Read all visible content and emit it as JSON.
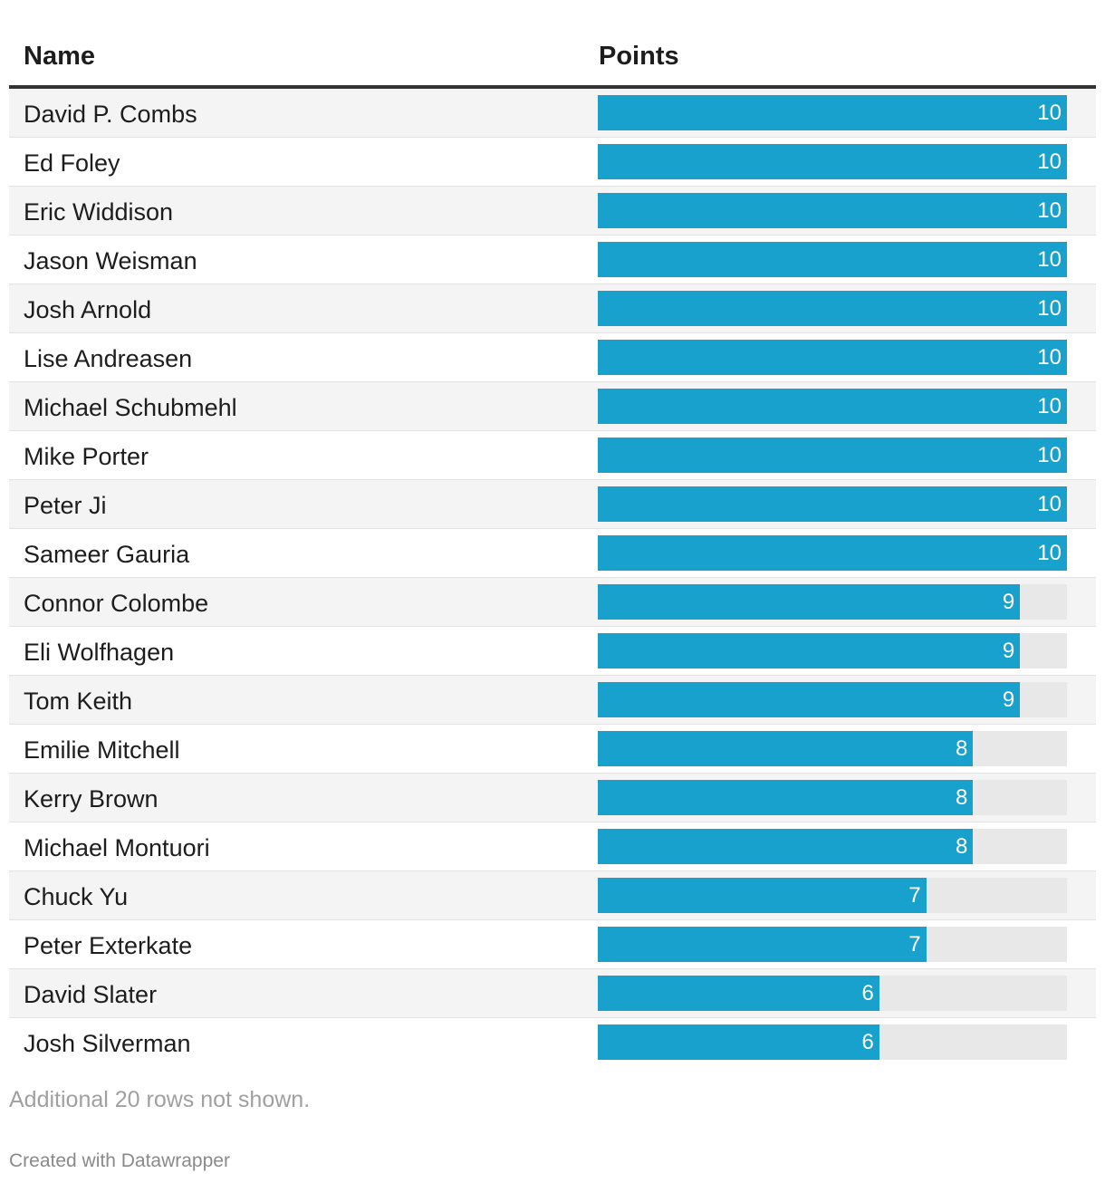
{
  "chart_data": {
    "type": "table",
    "columns": [
      "Name",
      "Points"
    ],
    "value_max": 10,
    "rows": [
      {
        "name": "David P. Combs",
        "points": 10
      },
      {
        "name": "Ed Foley",
        "points": 10
      },
      {
        "name": "Eric Widdison",
        "points": 10
      },
      {
        "name": "Jason Weisman",
        "points": 10
      },
      {
        "name": "Josh Arnold",
        "points": 10
      },
      {
        "name": "Lise Andreasen",
        "points": 10
      },
      {
        "name": "Michael Schubmehl",
        "points": 10
      },
      {
        "name": "Mike Porter",
        "points": 10
      },
      {
        "name": "Peter Ji",
        "points": 10
      },
      {
        "name": "Sameer Gauria",
        "points": 10
      },
      {
        "name": "Connor Colombe",
        "points": 9
      },
      {
        "name": "Eli Wolfhagen",
        "points": 9
      },
      {
        "name": "Tom Keith",
        "points": 9
      },
      {
        "name": "Emilie Mitchell",
        "points": 8
      },
      {
        "name": "Kerry Brown",
        "points": 8
      },
      {
        "name": "Michael Montuori",
        "points": 8
      },
      {
        "name": "Chuck Yu",
        "points": 7
      },
      {
        "name": "Peter Exterkate",
        "points": 7
      },
      {
        "name": "David Slater",
        "points": 6
      },
      {
        "name": "Josh Silverman",
        "points": 6
      }
    ],
    "note": "Additional 20 rows not shown."
  },
  "header": {
    "name_label": "Name",
    "points_label": "Points"
  },
  "footer": {
    "credit": "Created with Datawrapper"
  },
  "colors": {
    "bar": "#18a1cd",
    "track": "#e8e8e8"
  }
}
